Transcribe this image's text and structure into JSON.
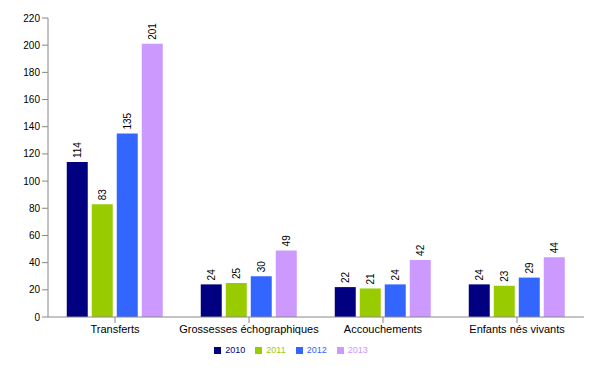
{
  "chart_data": {
    "type": "bar",
    "categories": [
      "Transferts",
      "Grossesses échographiques",
      "Accouchements",
      "Enfants nés vivants"
    ],
    "series": [
      {
        "name": "2010",
        "color": "#000080",
        "values": [
          114,
          24,
          22,
          24
        ]
      },
      {
        "name": "2011",
        "color": "#99cc00",
        "values": [
          83,
          25,
          21,
          23
        ]
      },
      {
        "name": "2012",
        "color": "#3366ff",
        "values": [
          135,
          30,
          24,
          29
        ]
      },
      {
        "name": "2013",
        "color": "#cc99ff",
        "values": [
          201,
          49,
          42,
          44
        ]
      }
    ],
    "ylim": [
      0,
      220
    ],
    "yticks": [
      0,
      20,
      40,
      60,
      80,
      100,
      120,
      140,
      160,
      180,
      200,
      220
    ],
    "grid": false,
    "legend": "bottom",
    "data_labels": true
  }
}
